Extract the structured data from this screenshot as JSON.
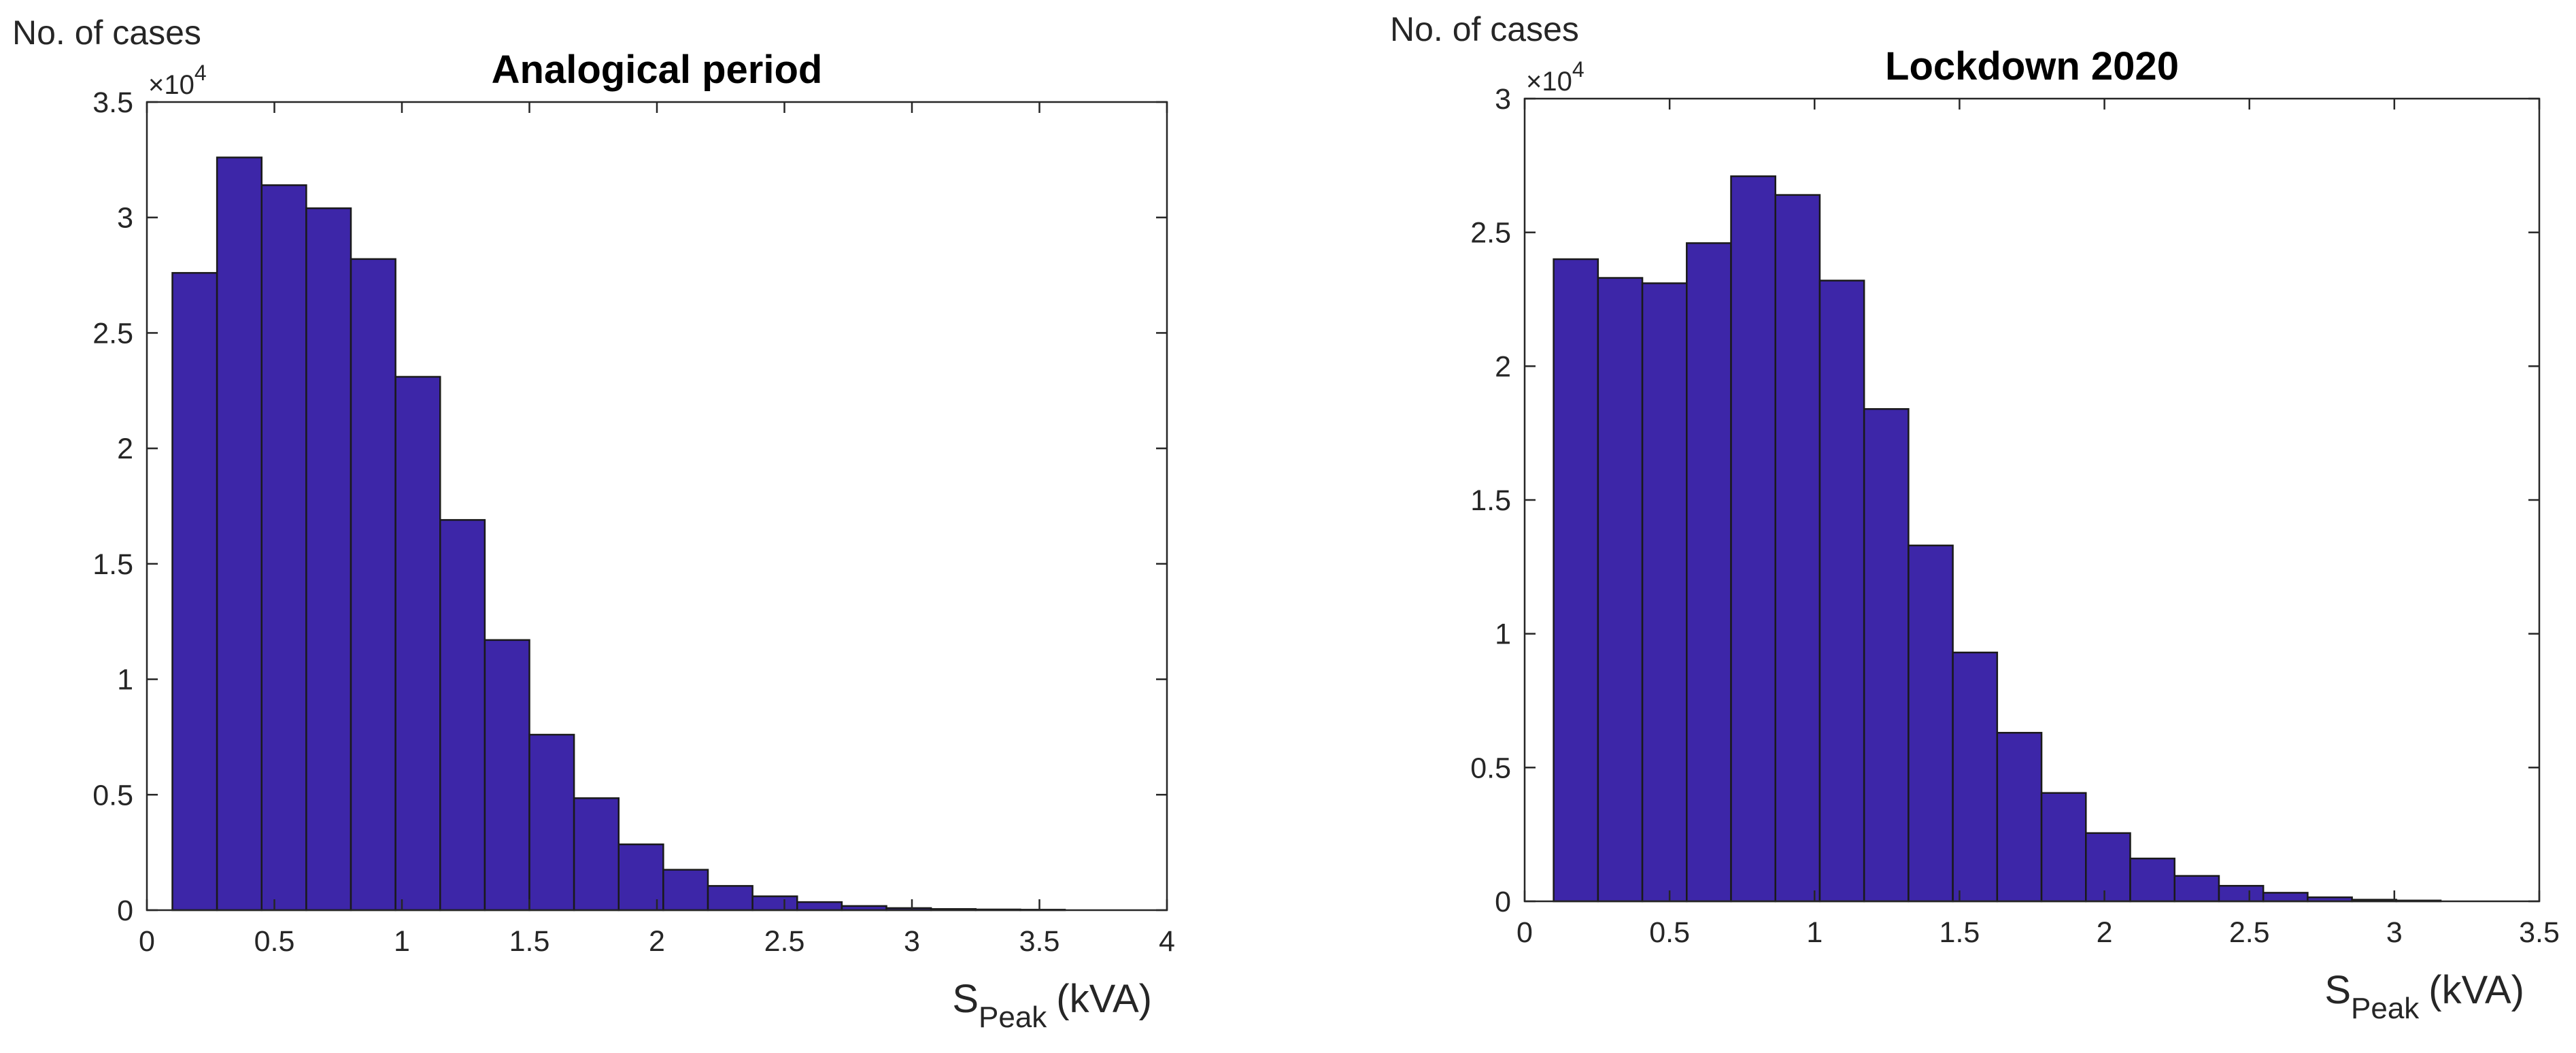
{
  "colors": {
    "bar_fill": "#3d26a8",
    "bar_edge": "#1a1a1a",
    "axis": "#262626"
  },
  "chart_data": [
    {
      "type": "bar",
      "title": "Analogical period",
      "ylabel": "No. of cases",
      "y_exponent_base": "×10",
      "y_exponent_power": "4",
      "xlabel_main": "S",
      "xlabel_sub": "Peak",
      "xlabel_unit": "(kVA)",
      "xlim": [
        0,
        4
      ],
      "ylim": [
        0,
        3.5
      ],
      "x_ticks": [
        0,
        0.5,
        1,
        1.5,
        2,
        2.5,
        3,
        3.5,
        4
      ],
      "x_tick_labels": [
        "0",
        "0.5",
        "1",
        "1.5",
        "2",
        "2.5",
        "3",
        "3.5",
        "4"
      ],
      "y_ticks": [
        0,
        0.5,
        1,
        1.5,
        2,
        2.5,
        3,
        3.5
      ],
      "y_tick_labels": [
        "0",
        "0.5",
        "1",
        "1.5",
        "2",
        "2.5",
        "3",
        "3.5"
      ],
      "bin_start": 0.1,
      "bin_width": 0.175,
      "values": [
        2.76,
        3.26,
        3.14,
        3.04,
        2.82,
        2.31,
        1.69,
        1.17,
        0.76,
        0.485,
        0.285,
        0.175,
        0.105,
        0.06,
        0.035,
        0.018,
        0.009,
        0.005,
        0.003,
        0.002
      ],
      "value_scale": "×10^4 cases"
    },
    {
      "type": "bar",
      "title": "Lockdown 2020",
      "ylabel": "No. of cases",
      "y_exponent_base": "×10",
      "y_exponent_power": "4",
      "xlabel_main": "S",
      "xlabel_sub": "Peak",
      "xlabel_unit": "(kVA)",
      "xlim": [
        0,
        3.5
      ],
      "ylim": [
        0,
        3
      ],
      "x_ticks": [
        0,
        0.5,
        1,
        1.5,
        2,
        2.5,
        3,
        3.5
      ],
      "x_tick_labels": [
        "0",
        "0.5",
        "1",
        "1.5",
        "2",
        "2.5",
        "3",
        "3.5"
      ],
      "y_ticks": [
        0,
        0.5,
        1,
        1.5,
        2,
        2.5,
        3
      ],
      "y_tick_labels": [
        "0",
        "0.5",
        "1",
        "1.5",
        "2",
        "2.5",
        "3"
      ],
      "bin_start": 0.1,
      "bin_width": 0.153,
      "values": [
        2.4,
        2.33,
        2.31,
        2.46,
        2.71,
        2.64,
        2.32,
        1.84,
        1.33,
        0.93,
        0.63,
        0.405,
        0.255,
        0.16,
        0.095,
        0.058,
        0.032,
        0.015,
        0.006,
        0.003
      ],
      "value_scale": "×10^4 cases"
    }
  ]
}
